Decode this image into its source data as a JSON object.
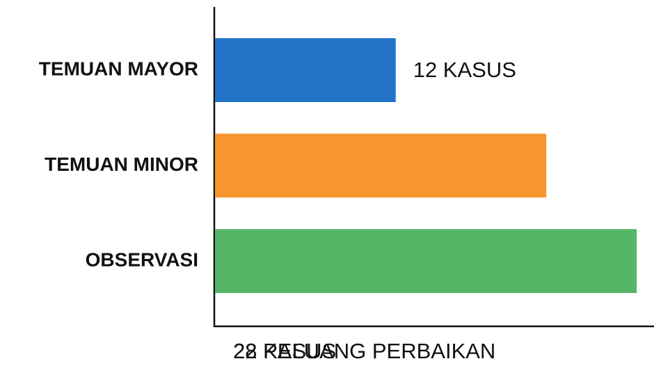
{
  "chart_data": {
    "type": "bar",
    "orientation": "horizontal",
    "categories": [
      "TEMUAN MAYOR",
      "TEMUAN MINOR",
      "OBSERVASI"
    ],
    "values": [
      12,
      22,
      28
    ],
    "value_labels": [
      "12 KASUS",
      "22 KASUS",
      "28 PELUANG PERBAIKAN"
    ],
    "colors": [
      "#2272c8",
      "#f7962f",
      "#55b667"
    ]
  }
}
